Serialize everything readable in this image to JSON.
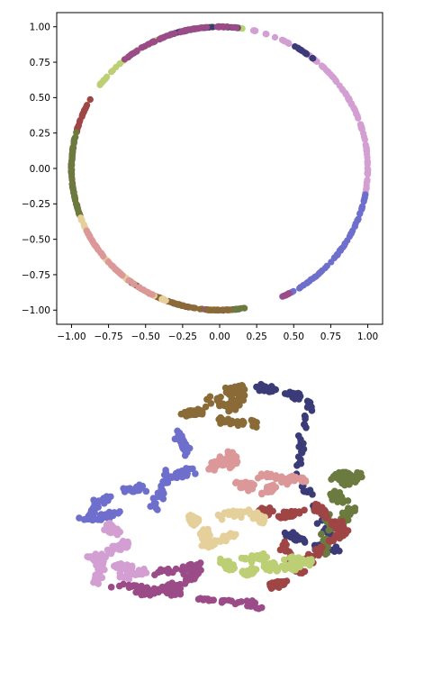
{
  "chart_data": [
    {
      "type": "scatter",
      "title": "",
      "xlabel": "",
      "ylabel": "",
      "xlim": [
        -1.1,
        1.1
      ],
      "ylim": [
        -1.1,
        1.1
      ],
      "x_ticks": [
        "−1.00",
        "−0.75",
        "−0.50",
        "−0.25",
        "0.00",
        "0.25",
        "0.50",
        "0.75",
        "1.00"
      ],
      "y_ticks": [
        "1.00",
        "0.75",
        "0.50",
        "0.25",
        "0.00",
        "−0.25",
        "−0.50",
        "−0.75",
        "−1.00"
      ],
      "x_tick_values": [
        -1.0,
        -0.75,
        -0.5,
        -0.25,
        0.0,
        0.25,
        0.5,
        0.75,
        1.0
      ],
      "y_tick_values": [
        1.0,
        0.75,
        0.5,
        0.25,
        0.0,
        -0.25,
        -0.5,
        -0.75,
        -1.0
      ],
      "grid": false,
      "legend": "none",
      "description_shape": "unit circle",
      "series": [
        {
          "color": "#d39fd3",
          "arc_degrees": [
            [
              10,
              78
            ],
            [
              350,
              360
            ],
            [
              0,
              10
            ]
          ]
        },
        {
          "color": "#6e6ecc",
          "arc_degrees": [
            [
              295,
              350
            ]
          ]
        },
        {
          "color": "#bccf75",
          "arc_degrees": [
            [
              95,
              145
            ],
            [
              80,
              95
            ]
          ]
        },
        {
          "color": "#3b3b78",
          "arc_degrees": [
            [
              82,
              110
            ],
            [
              50,
              60
            ],
            [
              268,
              278
            ]
          ]
        },
        {
          "color": "#9b4b87",
          "arc_degrees": [
            [
              82,
              130
            ],
            [
              262,
              272
            ],
            [
              295,
              300
            ]
          ]
        },
        {
          "color": "#9f4545",
          "arc_degrees": [
            [
              150,
              200
            ],
            [
              245,
              262
            ]
          ]
        },
        {
          "color": "#6b7a3e",
          "arc_degrees": [
            [
              165,
              200
            ],
            [
              265,
              280
            ]
          ]
        },
        {
          "color": "#8a6a36",
          "arc_degrees": [
            [
              230,
              275
            ]
          ]
        },
        {
          "color": "#e5cf9a",
          "arc_degrees": [
            [
              200,
              250
            ]
          ]
        },
        {
          "color": "#dc9898",
          "arc_degrees": [
            [
              205,
              245
            ]
          ]
        }
      ]
    },
    {
      "type": "scatter",
      "title": "",
      "axes": "off",
      "series": [
        {
          "color": "#8a6a36",
          "pts": [
            [
              0.48,
              0.06
            ],
            [
              0.62,
              0.15
            ],
            [
              0.4,
              0.12
            ],
            [
              0.55,
              0.09
            ],
            [
              0.58,
              0.03
            ]
          ]
        },
        {
          "color": "#3b3b78",
          "pts": [
            [
              0.62,
              0.03
            ],
            [
              0.7,
              0.05
            ],
            [
              0.76,
              0.07
            ],
            [
              0.7,
              0.51
            ],
            [
              0.78,
              0.55
            ],
            [
              0.84,
              0.58
            ]
          ]
        },
        {
          "color": "#6e6ecc",
          "pts": [
            [
              0.4,
              0.18
            ],
            [
              0.44,
              0.3
            ],
            [
              0.3,
              0.35
            ],
            [
              0.2,
              0.39
            ],
            [
              0.12,
              0.46
            ],
            [
              0.33,
              0.43
            ]
          ]
        },
        {
          "color": "#dc9898",
          "pts": [
            [
              0.49,
              0.3
            ],
            [
              0.54,
              0.24
            ],
            [
              0.56,
              0.34
            ],
            [
              0.64,
              0.37
            ],
            [
              0.68,
              0.33
            ],
            [
              0.75,
              0.33
            ]
          ]
        },
        {
          "color": "#6b7a3e",
          "pts": [
            [
              0.83,
              0.32
            ],
            [
              0.9,
              0.31
            ],
            [
              0.82,
              0.38
            ],
            [
              0.88,
              0.42
            ],
            [
              0.8,
              0.57
            ]
          ]
        },
        {
          "color": "#9f4545",
          "pts": [
            [
              0.62,
              0.43
            ],
            [
              0.68,
              0.45
            ],
            [
              0.78,
              0.42
            ],
            [
              0.83,
              0.47
            ],
            [
              0.86,
              0.5
            ],
            [
              0.65,
              0.68
            ],
            [
              0.74,
              0.64
            ]
          ]
        },
        {
          "color": "#e5cf9a",
          "pts": [
            [
              0.43,
              0.45
            ],
            [
              0.47,
              0.5
            ],
            [
              0.47,
              0.55
            ],
            [
              0.63,
              0.46
            ],
            [
              0.59,
              0.44
            ]
          ]
        },
        {
          "color": "#d39fd3",
          "pts": [
            [
              0.2,
              0.48
            ],
            [
              0.26,
              0.54
            ],
            [
              0.15,
              0.58
            ],
            [
              0.22,
              0.61
            ],
            [
              0.3,
              0.63
            ],
            [
              0.17,
              0.67
            ]
          ]
        },
        {
          "color": "#9b4b87",
          "pts": [
            [
              0.29,
              0.7
            ],
            [
              0.36,
              0.69
            ],
            [
              0.42,
              0.66
            ],
            [
              0.46,
              0.61
            ],
            [
              0.2,
              0.67
            ],
            [
              0.62,
              0.74
            ]
          ]
        },
        {
          "color": "#bccf75",
          "pts": [
            [
              0.52,
              0.6
            ],
            [
              0.58,
              0.64
            ],
            [
              0.64,
              0.61
            ],
            [
              0.7,
              0.62
            ],
            [
              0.76,
              0.6
            ],
            [
              0.63,
              0.58
            ]
          ]
        }
      ]
    }
  ]
}
